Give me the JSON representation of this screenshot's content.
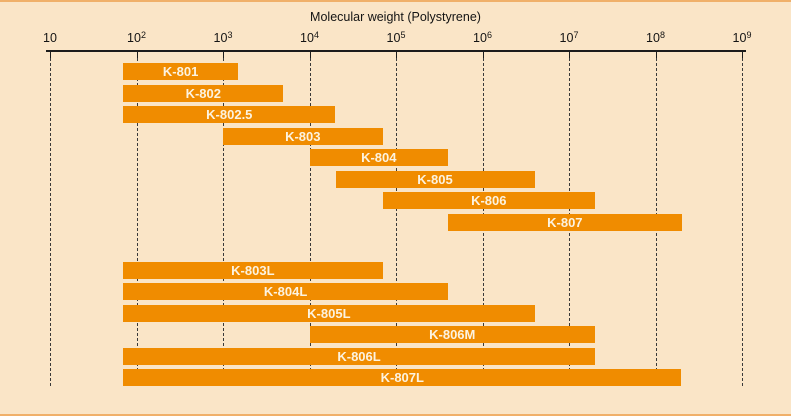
{
  "figure": {
    "colors": {
      "background": "#FAE5C7",
      "bar": "#F08C00",
      "bar_label": "#FCF3E0",
      "axis": "#1B1B1B",
      "edge_rule": "#F0B06A"
    }
  },
  "chart_data": {
    "type": "bar",
    "orientation": "horizontal",
    "title": "Molecular weight (Polystyrene)",
    "x_scale": "log10",
    "x_range": [
      10,
      1000000000
    ],
    "x_ticks": [
      "10",
      "10^2",
      "10^3",
      "10^4",
      "10^5",
      "10^6",
      "10^7",
      "10^8",
      "10^9"
    ],
    "gridlines": "vertical-dashed-at-each-decade",
    "legend": "none",
    "bars": [
      {
        "name": "K-801",
        "group": 1,
        "mw_min": 70,
        "mw_max": 1500
      },
      {
        "name": "K-802",
        "group": 1,
        "mw_min": 70,
        "mw_max": 5000
      },
      {
        "name": "K-802.5",
        "group": 1,
        "mw_min": 70,
        "mw_max": 20000
      },
      {
        "name": "K-803",
        "group": 1,
        "mw_min": 1000,
        "mw_max": 70000
      },
      {
        "name": "K-804",
        "group": 1,
        "mw_min": 10000,
        "mw_max": 400000
      },
      {
        "name": "K-805",
        "group": 1,
        "mw_min": 20000,
        "mw_max": 4000000
      },
      {
        "name": "K-806",
        "group": 1,
        "mw_min": 70000,
        "mw_max": 20000000
      },
      {
        "name": "K-807",
        "group": 1,
        "mw_min": 400000,
        "mw_max": 200000000
      },
      {
        "name": "K-803L",
        "group": 2,
        "mw_min": 70,
        "mw_max": 70000
      },
      {
        "name": "K-804L",
        "group": 2,
        "mw_min": 70,
        "mw_max": 400000
      },
      {
        "name": "K-805L",
        "group": 2,
        "mw_min": 70,
        "mw_max": 4000000
      },
      {
        "name": "K-806M",
        "group": 2,
        "mw_min": 10000,
        "mw_max": 20000000
      },
      {
        "name": "K-806L",
        "group": 2,
        "mw_min": 70,
        "mw_max": 20000000
      },
      {
        "name": "K-807L",
        "group": 2,
        "mw_min": 70,
        "mw_max": 200000000
      }
    ]
  }
}
